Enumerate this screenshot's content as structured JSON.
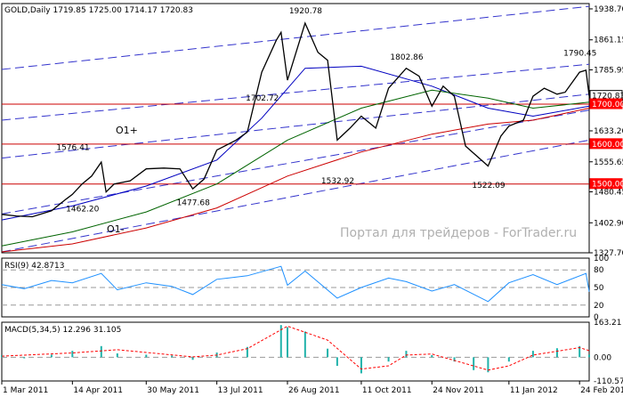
{
  "chart_data": {
    "type": "line",
    "instrument": "GOLD",
    "timeframe": "Daily",
    "header_text": "GOLD,Daily  1719.85 1725.00 1714.17 1720.83",
    "ohlc": {
      "open": 1719.85,
      "high": 1725.0,
      "low": 1714.17,
      "close": 1720.83
    },
    "x_tick_labels": [
      "1 Mar 2011",
      "14 Apr 2011",
      "30 May 2011",
      "13 Jul 2011",
      "26 Aug 2011",
      "11 Oct 2011",
      "24 Nov 2011",
      "11 Jan 2012",
      "24 Feb 2012"
    ],
    "price_ticks": [
      "1938.70",
      "1861.15",
      "1785.95",
      "1708.40",
      "1633.20",
      "1555.65",
      "1480.45",
      "1402.90",
      "1327.70"
    ],
    "price_ylim": [
      1327.7,
      1952
    ],
    "price_scale_labels": [
      {
        "text": "1720.83",
        "value": 1720.83,
        "boxed": true,
        "fill": "#ffffff",
        "text_color": "#000000"
      },
      {
        "text": "1700.00",
        "value": 1700.0,
        "boxed": true,
        "fill": "#ff0000",
        "text_color": "#ffffff"
      },
      {
        "text": "1600.00",
        "value": 1600.0,
        "boxed": true,
        "fill": "#ff0000",
        "text_color": "#ffffff"
      },
      {
        "text": "1500.00",
        "value": 1500.0,
        "boxed": true,
        "fill": "#ff0000",
        "text_color": "#ffffff"
      }
    ],
    "support_levels": [
      1700,
      1600,
      1500
    ],
    "channel_labels": [
      "O1+",
      "O1-"
    ],
    "price_annotations": [
      "1920.78",
      "1802.86",
      "1790.45",
      "1702.72",
      "1576.41",
      "1462.20",
      "1477.68",
      "1532.92",
      "1522.09"
    ],
    "watermark": "Портал для трейдеров - ForTrader.ru",
    "price_closes": [
      {
        "date": "2011-03-01",
        "close": 1424
      },
      {
        "date": "2011-03-10",
        "close": 1420
      },
      {
        "date": "2011-03-20",
        "close": 1418
      },
      {
        "date": "2011-04-01",
        "close": 1433
      },
      {
        "date": "2011-04-10",
        "close": 1462
      },
      {
        "date": "2011-04-14",
        "close": 1474
      },
      {
        "date": "2011-04-20",
        "close": 1500
      },
      {
        "date": "2011-04-26",
        "close": 1520
      },
      {
        "date": "2011-05-02",
        "close": 1555
      },
      {
        "date": "2011-05-05",
        "close": 1480
      },
      {
        "date": "2011-05-10",
        "close": 1500
      },
      {
        "date": "2011-05-20",
        "close": 1508
      },
      {
        "date": "2011-05-30",
        "close": 1538
      },
      {
        "date": "2011-06-10",
        "close": 1540
      },
      {
        "date": "2011-06-20",
        "close": 1538
      },
      {
        "date": "2011-06-28",
        "close": 1488
      },
      {
        "date": "2011-07-05",
        "close": 1512
      },
      {
        "date": "2011-07-13",
        "close": 1585
      },
      {
        "date": "2011-07-25",
        "close": 1610
      },
      {
        "date": "2011-08-01",
        "close": 1630
      },
      {
        "date": "2011-08-10",
        "close": 1780
      },
      {
        "date": "2011-08-19",
        "close": 1860
      },
      {
        "date": "2011-08-22",
        "close": 1880
      },
      {
        "date": "2011-08-26",
        "close": 1760
      },
      {
        "date": "2011-09-06",
        "close": 1903
      },
      {
        "date": "2011-09-14",
        "close": 1830
      },
      {
        "date": "2011-09-20",
        "close": 1810
      },
      {
        "date": "2011-09-26",
        "close": 1610
      },
      {
        "date": "2011-10-04",
        "close": 1640
      },
      {
        "date": "2011-10-11",
        "close": 1670
      },
      {
        "date": "2011-10-20",
        "close": 1640
      },
      {
        "date": "2011-10-28",
        "close": 1740
      },
      {
        "date": "2011-11-08",
        "close": 1790
      },
      {
        "date": "2011-11-16",
        "close": 1770
      },
      {
        "date": "2011-11-24",
        "close": 1695
      },
      {
        "date": "2011-12-01",
        "close": 1745
      },
      {
        "date": "2011-12-08",
        "close": 1720
      },
      {
        "date": "2011-12-15",
        "close": 1595
      },
      {
        "date": "2011-12-29",
        "close": 1545
      },
      {
        "date": "2012-01-06",
        "close": 1620
      },
      {
        "date": "2012-01-11",
        "close": 1645
      },
      {
        "date": "2012-01-20",
        "close": 1660
      },
      {
        "date": "2012-01-26",
        "close": 1720
      },
      {
        "date": "2012-02-02",
        "close": 1740
      },
      {
        "date": "2012-02-10",
        "close": 1725
      },
      {
        "date": "2012-02-15",
        "close": 1730
      },
      {
        "date": "2012-02-24",
        "close": 1780
      },
      {
        "date": "2012-02-28",
        "close": 1785
      },
      {
        "date": "2012-03-01",
        "close": 1720.83
      }
    ],
    "moving_averages": [
      {
        "color": "#0000c0",
        "points": [
          {
            "date": "2011-03-01",
            "value": 1410
          },
          {
            "date": "2011-04-14",
            "value": 1445
          },
          {
            "date": "2011-05-30",
            "value": 1495
          },
          {
            "date": "2011-07-13",
            "value": 1560
          },
          {
            "date": "2011-08-10",
            "value": 1665
          },
          {
            "date": "2011-09-06",
            "value": 1790
          },
          {
            "date": "2011-10-11",
            "value": 1795
          },
          {
            "date": "2011-11-24",
            "value": 1745
          },
          {
            "date": "2011-12-29",
            "value": 1690
          },
          {
            "date": "2012-01-26",
            "value": 1670
          },
          {
            "date": "2012-03-01",
            "value": 1695
          }
        ]
      },
      {
        "color": "#006400",
        "points": [
          {
            "date": "2011-03-01",
            "value": 1345
          },
          {
            "date": "2011-04-14",
            "value": 1380
          },
          {
            "date": "2011-05-30",
            "value": 1430
          },
          {
            "date": "2011-07-13",
            "value": 1500
          },
          {
            "date": "2011-08-26",
            "value": 1610
          },
          {
            "date": "2011-10-11",
            "value": 1690
          },
          {
            "date": "2011-11-24",
            "value": 1735
          },
          {
            "date": "2011-12-29",
            "value": 1715
          },
          {
            "date": "2012-01-26",
            "value": 1690
          },
          {
            "date": "2012-03-01",
            "value": 1705
          }
        ]
      },
      {
        "color": "#cc0000",
        "points": [
          {
            "date": "2011-03-01",
            "value": 1330
          },
          {
            "date": "2011-04-14",
            "value": 1350
          },
          {
            "date": "2011-05-30",
            "value": 1390
          },
          {
            "date": "2011-07-13",
            "value": 1440
          },
          {
            "date": "2011-08-26",
            "value": 1520
          },
          {
            "date": "2011-10-11",
            "value": 1580
          },
          {
            "date": "2011-11-24",
            "value": 1625
          },
          {
            "date": "2011-12-29",
            "value": 1650
          },
          {
            "date": "2012-01-26",
            "value": 1660
          },
          {
            "date": "2012-03-01",
            "value": 1690
          }
        ]
      }
    ],
    "channel_lines": [
      {
        "start": {
          "date": "2011-03-01",
          "value": 1787
        },
        "end": {
          "date": "2012-03-01",
          "value": 1945
        }
      },
      {
        "start": {
          "date": "2011-03-01",
          "value": 1660
        },
        "end": {
          "date": "2012-03-01",
          "value": 1800
        }
      },
      {
        "start": {
          "date": "2011-03-01",
          "value": 1565
        },
        "end": {
          "date": "2012-03-01",
          "value": 1725
        }
      },
      {
        "start": {
          "date": "2011-03-01",
          "value": 1425
        },
        "end": {
          "date": "2012-03-01",
          "value": 1685
        }
      },
      {
        "start": {
          "date": "2011-03-01",
          "value": 1330
        },
        "end": {
          "date": "2012-03-01",
          "value": 1610
        }
      }
    ],
    "rsi": {
      "label": "RSI(9) 42.8713",
      "value": 42.8713,
      "ylim": [
        0,
        100
      ],
      "levels": [
        80,
        50,
        20
      ],
      "tick_labels": [
        "100",
        "80",
        "50",
        "20",
        "0"
      ],
      "points": [
        {
          "date": "2011-03-01",
          "value": 55
        },
        {
          "date": "2011-03-15",
          "value": 48
        },
        {
          "date": "2011-04-01",
          "value": 62
        },
        {
          "date": "2011-04-14",
          "value": 58
        },
        {
          "date": "2011-05-02",
          "value": 74
        },
        {
          "date": "2011-05-12",
          "value": 46
        },
        {
          "date": "2011-05-30",
          "value": 58
        },
        {
          "date": "2011-06-15",
          "value": 52
        },
        {
          "date": "2011-06-28",
          "value": 38
        },
        {
          "date": "2011-07-13",
          "value": 64
        },
        {
          "date": "2011-08-01",
          "value": 70
        },
        {
          "date": "2011-08-22",
          "value": 86
        },
        {
          "date": "2011-08-26",
          "value": 54
        },
        {
          "date": "2011-09-06",
          "value": 78
        },
        {
          "date": "2011-09-26",
          "value": 32
        },
        {
          "date": "2011-10-11",
          "value": 50
        },
        {
          "date": "2011-10-28",
          "value": 66
        },
        {
          "date": "2011-11-08",
          "value": 60
        },
        {
          "date": "2011-11-24",
          "value": 44
        },
        {
          "date": "2011-12-08",
          "value": 55
        },
        {
          "date": "2011-12-29",
          "value": 26
        },
        {
          "date": "2012-01-11",
          "value": 58
        },
        {
          "date": "2012-01-26",
          "value": 72
        },
        {
          "date": "2012-02-10",
          "value": 55
        },
        {
          "date": "2012-02-28",
          "value": 74
        },
        {
          "date": "2012-03-01",
          "value": 42.87
        }
      ]
    },
    "macd": {
      "label": "MACD(5,34,5) 12.296 31.105",
      "main_value": 12.296,
      "signal_value": 31.105,
      "ylim": [
        -110.571,
        163.21
      ],
      "tick_labels": [
        "163.21",
        "0.00",
        "-110.571"
      ],
      "histogram": [
        {
          "date": "2011-03-01",
          "value": 10
        },
        {
          "date": "2011-03-15",
          "value": -5
        },
        {
          "date": "2011-04-01",
          "value": 12
        },
        {
          "date": "2011-04-14",
          "value": 30
        },
        {
          "date": "2011-05-02",
          "value": 52
        },
        {
          "date": "2011-05-12",
          "value": 18
        },
        {
          "date": "2011-05-30",
          "value": 12
        },
        {
          "date": "2011-06-15",
          "value": 8
        },
        {
          "date": "2011-06-28",
          "value": -12
        },
        {
          "date": "2011-07-13",
          "value": 22
        },
        {
          "date": "2011-08-01",
          "value": 48
        },
        {
          "date": "2011-08-22",
          "value": 150
        },
        {
          "date": "2011-08-26",
          "value": 140
        },
        {
          "date": "2011-09-06",
          "value": 120
        },
        {
          "date": "2011-09-20",
          "value": 40
        },
        {
          "date": "2011-09-26",
          "value": -40
        },
        {
          "date": "2011-10-11",
          "value": -75
        },
        {
          "date": "2011-10-28",
          "value": -20
        },
        {
          "date": "2011-11-08",
          "value": 30
        },
        {
          "date": "2011-11-24",
          "value": 10
        },
        {
          "date": "2011-12-08",
          "value": -20
        },
        {
          "date": "2011-12-20",
          "value": -60
        },
        {
          "date": "2011-12-29",
          "value": -70
        },
        {
          "date": "2012-01-11",
          "value": -20
        },
        {
          "date": "2012-01-26",
          "value": 30
        },
        {
          "date": "2012-02-10",
          "value": 42
        },
        {
          "date": "2012-02-24",
          "value": 52
        },
        {
          "date": "2012-03-01",
          "value": 12
        }
      ],
      "signal": [
        {
          "date": "2011-03-01",
          "value": 5
        },
        {
          "date": "2011-04-14",
          "value": 20
        },
        {
          "date": "2011-05-12",
          "value": 35
        },
        {
          "date": "2011-06-28",
          "value": 2
        },
        {
          "date": "2011-07-13",
          "value": 10
        },
        {
          "date": "2011-08-01",
          "value": 40
        },
        {
          "date": "2011-08-26",
          "value": 145
        },
        {
          "date": "2011-09-20",
          "value": 80
        },
        {
          "date": "2011-10-11",
          "value": -55
        },
        {
          "date": "2011-10-28",
          "value": -40
        },
        {
          "date": "2011-11-08",
          "value": 10
        },
        {
          "date": "2011-11-24",
          "value": 15
        },
        {
          "date": "2011-12-29",
          "value": -60
        },
        {
          "date": "2012-01-11",
          "value": -40
        },
        {
          "date": "2012-01-26",
          "value": 10
        },
        {
          "date": "2012-02-24",
          "value": 45
        },
        {
          "date": "2012-03-01",
          "value": 31
        }
      ]
    },
    "colors": {
      "price": "#000000",
      "level_lines": "#cc0000",
      "channel": "#3333cc",
      "rsi_line": "#1e90ff",
      "macd_histogram": "#20b2aa",
      "macd_signal": "#ff0000",
      "watermark": "#b0b0b0"
    }
  }
}
